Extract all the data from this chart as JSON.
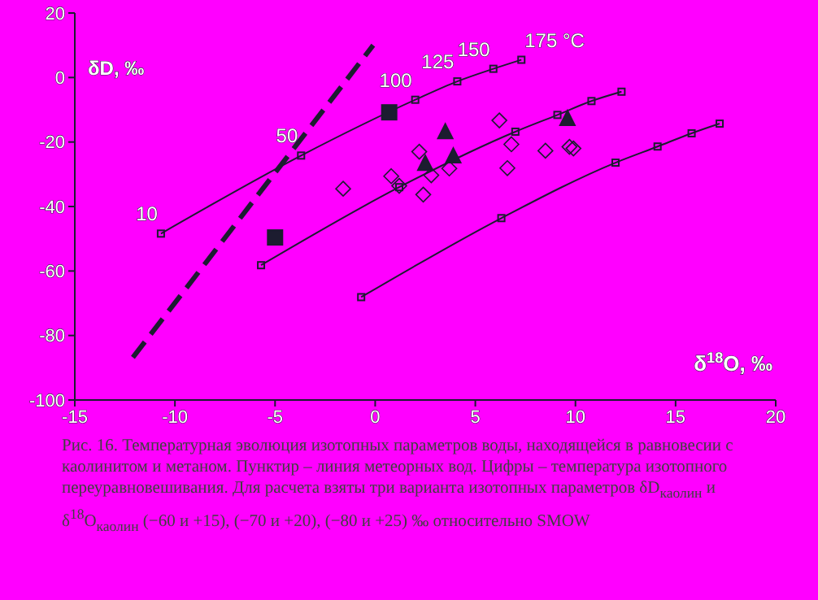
{
  "chart_data": {
    "type": "line",
    "xlabel": "δ$^{18}$O, ‰",
    "ylabel": "δD, ‰",
    "xlim": [
      -15,
      20
    ],
    "ylim": [
      -100,
      20
    ],
    "xticks": [
      -15,
      -10,
      -5,
      0,
      5,
      10,
      15,
      20
    ],
    "yticks": [
      -100,
      -80,
      -60,
      -40,
      -20,
      0,
      20
    ],
    "grid": false,
    "legend": false,
    "series": [
      {
        "color": "#1c1c30",
        "marker": "square",
        "line_style": "solid",
        "x": [
          -10.7,
          -3.7,
          2.0,
          4.1,
          5.9,
          7.3
        ],
        "values": [
          -48.4,
          -24.2,
          -6.9,
          -1.2,
          2.7,
          5.5
        ]
      },
      {
        "color": "#1c1c30",
        "marker": "square",
        "line_style": "solid",
        "x": [
          -5.7,
          1.2,
          7.0,
          9.1,
          10.8,
          12.3
        ],
        "values": [
          -58.2,
          -34.0,
          -16.8,
          -11.6,
          -7.3,
          -4.4
        ]
      },
      {
        "color": "#1c1c30",
        "marker": "square",
        "line_style": "solid",
        "x": [
          -0.7,
          6.3,
          12.0,
          14.1,
          15.8,
          17.2
        ],
        "values": [
          -68.1,
          -43.6,
          -26.4,
          -21.4,
          -17.3,
          -14.3
        ]
      },
      {
        "color": "#1c1c30",
        "marker": "none",
        "line_style": "dashed",
        "x": [
          -12.1,
          -0.1
        ],
        "values": [
          -86.8,
          10.0
        ]
      },
      {
        "type": "scatter",
        "color": "#1c1c30",
        "marker": "square",
        "x": [
          0.7,
          -5.0
        ],
        "values": [
          -10.8,
          -49.6
        ]
      },
      {
        "type": "scatter",
        "color": "#1c1c30",
        "marker": "triangle",
        "x": [
          3.5,
          2.5,
          3.9,
          9.6
        ],
        "values": [
          -17.1,
          -26.9,
          -24.6,
          -13.0
        ]
      },
      {
        "type": "scatter",
        "color": "#1c1c30",
        "marker": "diamond",
        "x": [
          6.2,
          2.2,
          -1.6,
          0.8,
          2.4,
          2.8,
          3.7,
          6.8,
          6.6,
          8.5,
          9.7,
          9.9,
          1.2
        ],
        "values": [
          -13.3,
          -23.0,
          -34.5,
          -30.6,
          -36.3,
          -30.3,
          -28.2,
          -20.7,
          -28.1,
          -22.7,
          -21.5,
          -22.0,
          -33.6
        ]
      }
    ],
    "annotations": [
      {
        "text": "10",
        "x": -10.7,
        "y": -48.4
      },
      {
        "text": "50",
        "x": -3.7,
        "y": -24.2
      },
      {
        "text": "100",
        "x": 2.0,
        "y": -6.9
      },
      {
        "text": "125",
        "x": 4.1,
        "y": -1.2
      },
      {
        "text": "150",
        "x": 5.9,
        "y": 2.7
      },
      {
        "text": "175 °C",
        "x": 7.3,
        "y": 5.5
      },
      "Рис. 16. Температурная эволюция изотопных параметров воды, находящейся в равновесии с каолинитом и метаном. Пунктир – линия метеорных вод. Цифры – температура изотопного переуравновешивания. Для расчета взяты три варианта изотопных параметров δD$_{каолин}$ и δ$^{18}$O$_{каолин}$ (−60 и +15), (−70 и +20), (−80 и +25) ‰ относительно SMOW"
    ]
  }
}
